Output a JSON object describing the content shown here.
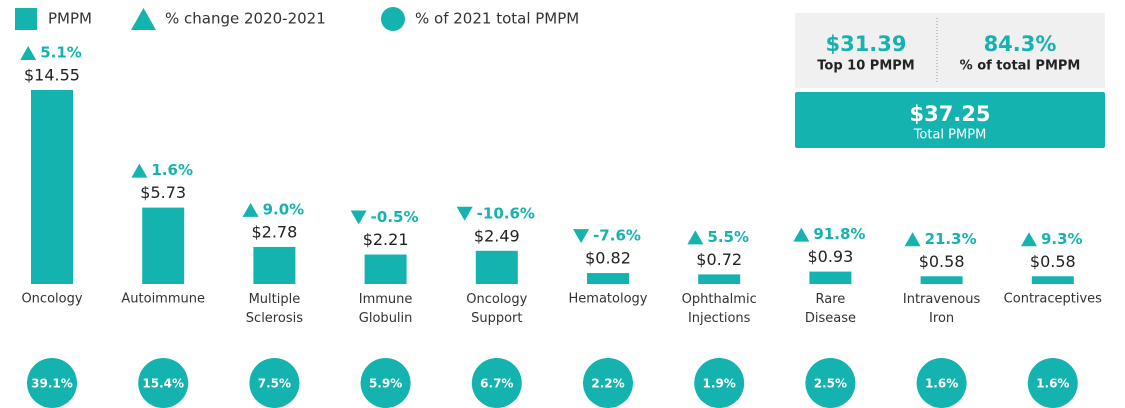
{
  "chart_data": {
    "type": "bar",
    "legend": [
      "PMPM",
      "% change 2020-2021",
      "% of 2021 total PMPM"
    ],
    "color": "#14b3b0",
    "categories": [
      "Oncology",
      "Autoimmune",
      "Multiple Sclerosis",
      "Immune Globulin",
      "Oncology Support",
      "Hematology",
      "Ophthalmic Injections",
      "Rare Disease",
      "Intravenous Iron",
      "Contraceptives"
    ],
    "values": [
      14.55,
      5.73,
      2.78,
      2.21,
      2.49,
      0.82,
      0.72,
      0.93,
      0.58,
      0.58
    ],
    "value_labels": [
      "$14.55",
      "$5.73",
      "$2.78",
      "$2.21",
      "$2.49",
      "$0.82",
      "$0.72",
      "$0.93",
      "$0.58",
      "$0.58"
    ],
    "change": [
      5.1,
      1.6,
      9.0,
      -0.5,
      -10.6,
      -7.6,
      5.5,
      91.8,
      21.3,
      9.3
    ],
    "change_labels": [
      "5.1%",
      "1.6%",
      "9.0%",
      "-0.5%",
      "-10.6%",
      "-7.6%",
      "5.5%",
      "91.8%",
      "21.3%",
      "9.3%"
    ],
    "share": [
      39.1,
      15.4,
      7.5,
      5.9,
      6.7,
      2.2,
      1.9,
      2.5,
      1.6,
      1.6
    ],
    "share_labels": [
      "39.1%",
      "15.4%",
      "7.5%",
      "5.9%",
      "6.7%",
      "2.2%",
      "1.9%",
      "2.5%",
      "1.6%",
      "1.6%"
    ],
    "summary": {
      "top10": {
        "value": 31.39,
        "label": "$31.39",
        "caption": "Top 10 PMPM"
      },
      "share": {
        "value": 84.3,
        "label": "84.3%",
        "caption": "% of total PMPM"
      },
      "total": {
        "value": 37.25,
        "label": "$37.25",
        "caption": "Total PMPM"
      }
    }
  }
}
